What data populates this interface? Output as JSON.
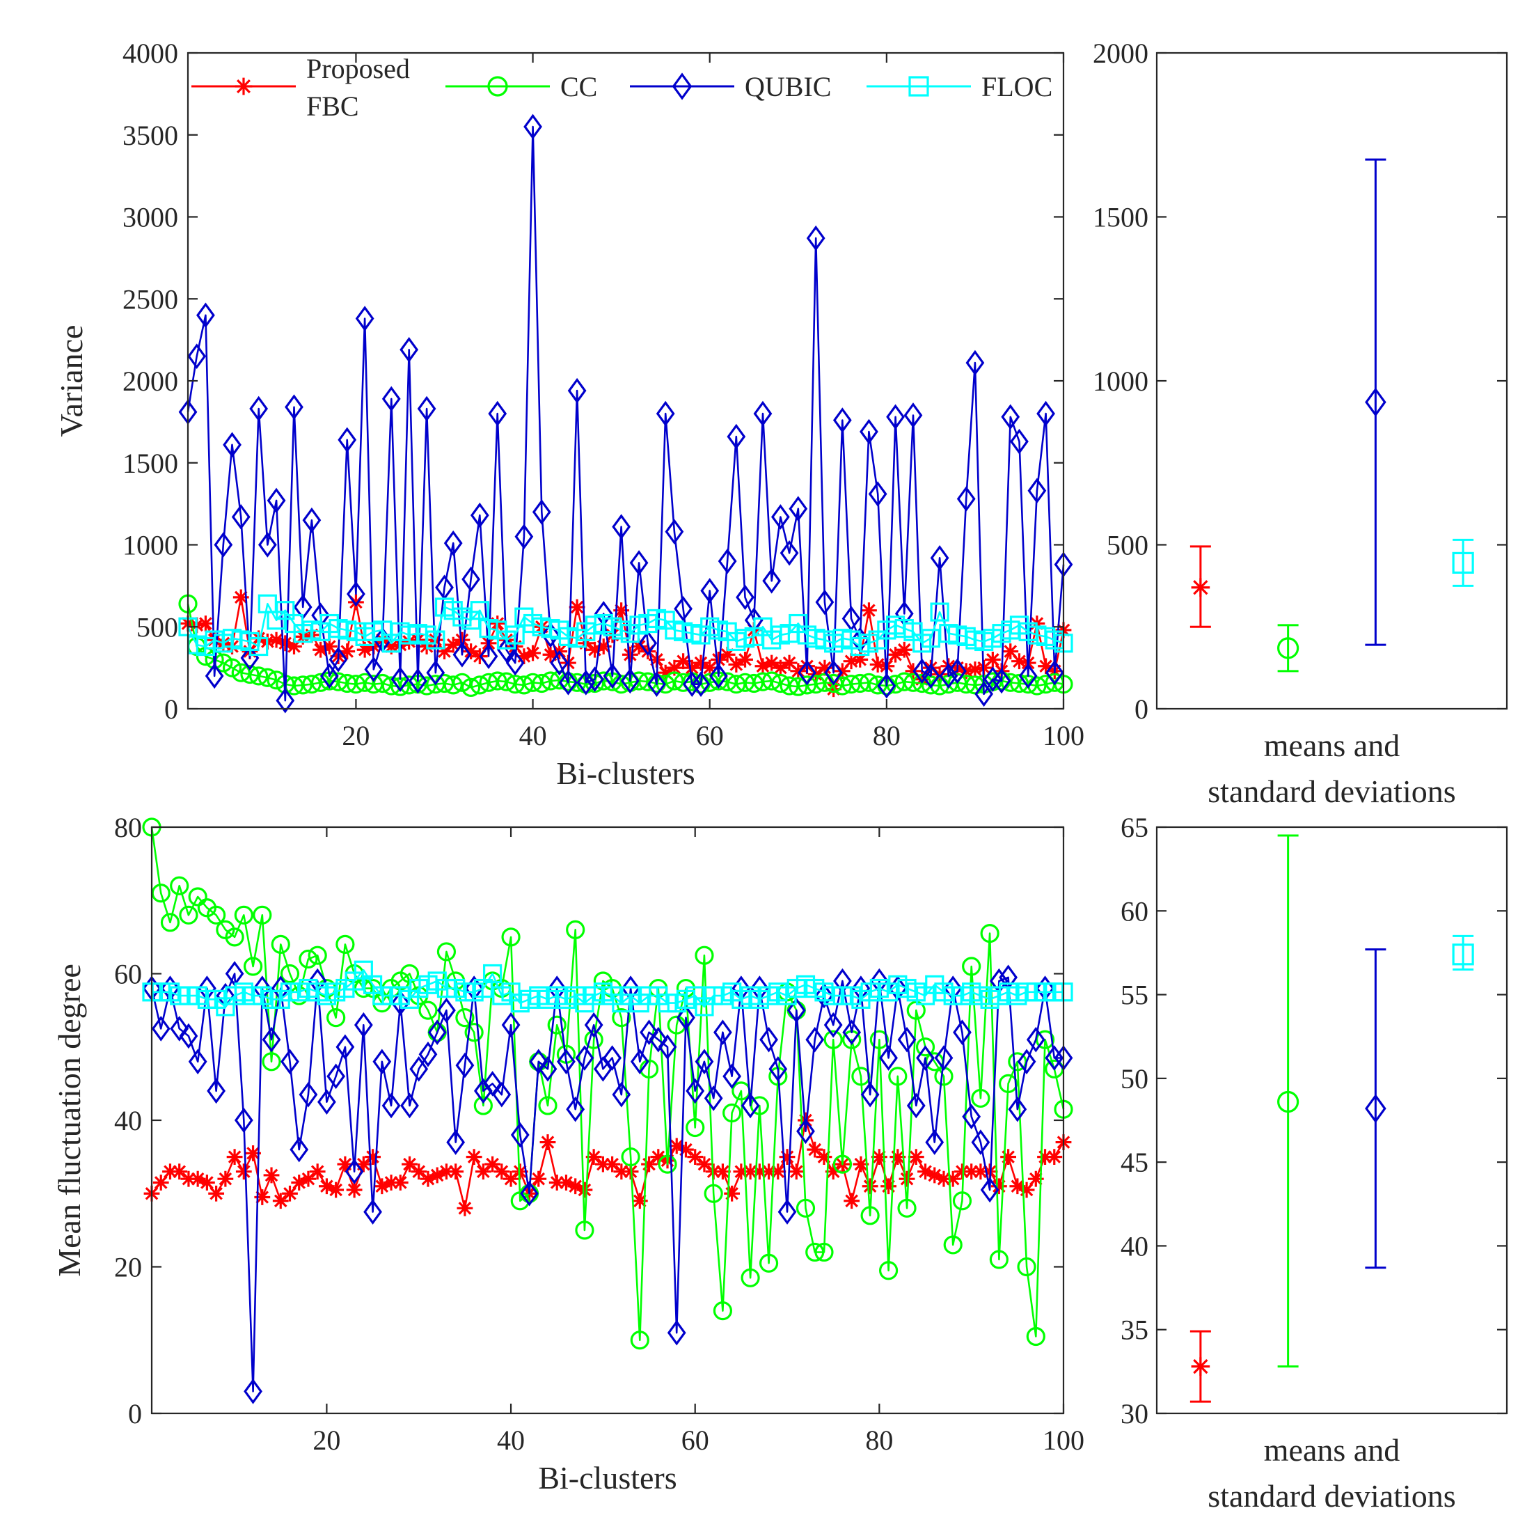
{
  "colors": {
    "Proposed FBC": "#ff0000",
    "CC": "#00ff00",
    "QUBIC": "#0000cc",
    "FLOC": "#00ffff",
    "axis": "#262626"
  },
  "legend": [
    {
      "series": "Proposed FBC",
      "lines": [
        "Proposed",
        "FBC"
      ],
      "marker": "star"
    },
    {
      "series": "CC",
      "lines": [
        "CC"
      ],
      "marker": "circle"
    },
    {
      "series": "QUBIC",
      "lines": [
        "QUBIC"
      ],
      "marker": "diamond"
    },
    {
      "series": "FLOC",
      "lines": [
        "FLOC"
      ],
      "marker": "square"
    }
  ],
  "chart_data": [
    {
      "id": "variance-line",
      "type": "line",
      "title": "",
      "xlabel": "Bi-clusters",
      "ylabel": "Variance",
      "xlim": [
        1,
        100
      ],
      "ylim": [
        0,
        4000
      ],
      "xticks": [
        20,
        40,
        60,
        80,
        100
      ],
      "yticks": [
        0,
        500,
        1000,
        1500,
        2000,
        2500,
        3000,
        3500,
        4000
      ],
      "legend": "top",
      "series": [
        {
          "name": "Proposed FBC",
          "marker": "star",
          "values": [
            520,
            510,
            520,
            420,
            400,
            380,
            680,
            350,
            430,
            410,
            420,
            400,
            380,
            440,
            450,
            360,
            380,
            320,
            350,
            650,
            360,
            380,
            420,
            380,
            390,
            410,
            420,
            380,
            420,
            350,
            390,
            420,
            350,
            320,
            400,
            520,
            420,
            380,
            320,
            340,
            500,
            330,
            350,
            280,
            620,
            400,
            360,
            380,
            450,
            600,
            330,
            380,
            350,
            300,
            220,
            250,
            290,
            250,
            280,
            250,
            300,
            330,
            270,
            300,
            480,
            260,
            280,
            250,
            280,
            230,
            260,
            210,
            250,
            120,
            230,
            290,
            300,
            600,
            270,
            260,
            330,
            360,
            230,
            180,
            250,
            210,
            260,
            250,
            230,
            240,
            250,
            300,
            230,
            350,
            290,
            280,
            520,
            260,
            230,
            480
          ]
        },
        {
          "name": "CC",
          "marker": "circle",
          "values": [
            640,
            380,
            320,
            300,
            280,
            250,
            220,
            210,
            200,
            190,
            175,
            150,
            140,
            145,
            150,
            160,
            170,
            165,
            155,
            150,
            160,
            150,
            155,
            140,
            135,
            145,
            150,
            140,
            150,
            155,
            145,
            160,
            130,
            145,
            160,
            170,
            165,
            150,
            145,
            160,
            155,
            170,
            175,
            165,
            160,
            150,
            155,
            170,
            165,
            150,
            160,
            170,
            165,
            155,
            150,
            170,
            160,
            165,
            150,
            160,
            170,
            165,
            150,
            160,
            155,
            165,
            170,
            155,
            140,
            135,
            145,
            150,
            160,
            155,
            140,
            150,
            155,
            160,
            145,
            140,
            150,
            165,
            160,
            155,
            145,
            140,
            150,
            160,
            150,
            145,
            150,
            165,
            170,
            160,
            155,
            150,
            140,
            150,
            160,
            150
          ]
        },
        {
          "name": "QUBIC",
          "marker": "diamond",
          "values": [
            1810,
            2150,
            2400,
            200,
            1000,
            1610,
            1170,
            310,
            1830,
            1000,
            1270,
            50,
            1840,
            620,
            1150,
            570,
            200,
            300,
            1640,
            700,
            2380,
            240,
            420,
            1890,
            180,
            2190,
            170,
            1830,
            220,
            740,
            1010,
            330,
            790,
            1180,
            320,
            1800,
            360,
            280,
            1050,
            3550,
            1200,
            450,
            280,
            160,
            1940,
            160,
            180,
            580,
            200,
            1110,
            170,
            890,
            400,
            150,
            1800,
            1080,
            610,
            150,
            150,
            720,
            200,
            900,
            1660,
            680,
            540,
            1800,
            780,
            1170,
            950,
            1220,
            220,
            2870,
            650,
            220,
            1760,
            550,
            420,
            1690,
            1310,
            140,
            1780,
            580,
            1790,
            230,
            200,
            920,
            200,
            230,
            1280,
            2110,
            90,
            180,
            170,
            1780,
            1630,
            200,
            1330,
            1800,
            220,
            880
          ]
        },
        {
          "name": "FLOC",
          "marker": "square",
          "values": [
            500,
            390,
            380,
            420,
            400,
            430,
            420,
            410,
            380,
            640,
            540,
            600,
            520,
            460,
            480,
            470,
            520,
            490,
            480,
            470,
            440,
            470,
            480,
            400,
            470,
            450,
            460,
            450,
            420,
            620,
            600,
            560,
            540,
            600,
            490,
            480,
            420,
            450,
            560,
            520,
            500,
            490,
            480,
            440,
            430,
            470,
            510,
            520,
            500,
            480,
            460,
            510,
            520,
            550,
            540,
            480,
            470,
            460,
            450,
            500,
            480,
            470,
            410,
            430,
            440,
            500,
            420,
            450,
            460,
            520,
            450,
            430,
            420,
            400,
            430,
            420,
            380,
            400,
            420,
            480,
            510,
            490,
            470,
            400,
            430,
            590,
            460,
            450,
            440,
            420,
            410,
            430,
            460,
            480,
            510,
            470,
            450,
            440,
            420,
            400
          ]
        }
      ]
    },
    {
      "id": "variance-errorbar",
      "type": "errorbar",
      "xlabel": "means and\nstandard deviations",
      "ylim": [
        0,
        2000
      ],
      "yticks": [
        0,
        500,
        1000,
        1500,
        2000
      ],
      "points": [
        {
          "name": "Proposed FBC",
          "marker": "star",
          "mean": 370,
          "low": 250,
          "high": 495
        },
        {
          "name": "CC",
          "marker": "circle",
          "mean": 185,
          "low": 115,
          "high": 255
        },
        {
          "name": "QUBIC",
          "marker": "diamond",
          "mean": 935,
          "low": 195,
          "high": 1675
        },
        {
          "name": "FLOC",
          "marker": "square",
          "mean": 445,
          "low": 375,
          "high": 515
        }
      ]
    },
    {
      "id": "fluctuation-line",
      "type": "line",
      "title": "",
      "xlabel": "Bi-clusters",
      "ylabel": "Mean fluctuation degree",
      "xlim": [
        1,
        100
      ],
      "ylim": [
        0,
        80
      ],
      "xticks": [
        20,
        40,
        60,
        80,
        100
      ],
      "yticks": [
        0,
        20,
        40,
        60,
        80
      ],
      "series": [
        {
          "name": "Proposed FBC",
          "marker": "star",
          "values": [
            30,
            31.5,
            33,
            33,
            32,
            32,
            31.5,
            30,
            32,
            35,
            33,
            35.5,
            29.5,
            32.5,
            29,
            30,
            31.5,
            32,
            33,
            31,
            30.5,
            34,
            30.5,
            34,
            35,
            31,
            31.5,
            31.5,
            34,
            33,
            32,
            32.5,
            33,
            33,
            28,
            35,
            33,
            34,
            33,
            32,
            33,
            30,
            32,
            37,
            31.5,
            31.5,
            31,
            30.5,
            35,
            34,
            34,
            33,
            33,
            29,
            34,
            35,
            34.5,
            36.5,
            36,
            35,
            34,
            33,
            33,
            30,
            33,
            33,
            33,
            33,
            33,
            35,
            33,
            40,
            36,
            35,
            33,
            34,
            29,
            34,
            31,
            35,
            31,
            35,
            32,
            35,
            33,
            32.5,
            32,
            32,
            33,
            33,
            33,
            33,
            31,
            35,
            31,
            30.5,
            32,
            35,
            35,
            37
          ]
        },
        {
          "name": "CC",
          "marker": "circle",
          "values": [
            80,
            71,
            67,
            72,
            68,
            70.5,
            69,
            68,
            66,
            65,
            68,
            61,
            68,
            48,
            64,
            60,
            57,
            62,
            62.5,
            58,
            54,
            64,
            60,
            58,
            58,
            56,
            58,
            59,
            60,
            57,
            55,
            52,
            63,
            59,
            54,
            52,
            42,
            59,
            58,
            65,
            29,
            30,
            48,
            42,
            53,
            49,
            66,
            25,
            51,
            59,
            58,
            54,
            35,
            10,
            47,
            58,
            34,
            53,
            58,
            39,
            62.5,
            30,
            14,
            41,
            44,
            18.5,
            42,
            20.5,
            46,
            57.5,
            55,
            28,
            22,
            22,
            51,
            34,
            51,
            46,
            27,
            51,
            19.5,
            46,
            28,
            55,
            50,
            48,
            46,
            23,
            29,
            61,
            43,
            65.5,
            21,
            45,
            48,
            20,
            10.5,
            51,
            47,
            41.5
          ]
        },
        {
          "name": "QUBIC",
          "marker": "diamond",
          "values": [
            58,
            52.5,
            58,
            52.5,
            51.5,
            48,
            58,
            44,
            57,
            60,
            40,
            3,
            58,
            51,
            58,
            48,
            36,
            43.5,
            59,
            42.5,
            46,
            50,
            33,
            53,
            27.5,
            48,
            42,
            56,
            42,
            47,
            49,
            52,
            55,
            37,
            47.5,
            58,
            44,
            45,
            43.5,
            53,
            38,
            30,
            48,
            47,
            58,
            48,
            41.5,
            48.5,
            53,
            47,
            48.5,
            43.5,
            58,
            48,
            52,
            51,
            50,
            11,
            54,
            44,
            48,
            43,
            52,
            46,
            58,
            42,
            58,
            51,
            47,
            27.5,
            55,
            38.5,
            51,
            57,
            53,
            59,
            52,
            58,
            43.5,
            59,
            48.5,
            58,
            51,
            42,
            48.5,
            37,
            48.5,
            58,
            52,
            40.5,
            37,
            30.5,
            59,
            59.5,
            41.5,
            48,
            51,
            58,
            48.5,
            48.5
          ]
        },
        {
          "name": "FLOC",
          "marker": "square",
          "values": [
            57.5,
            57.5,
            57.5,
            57,
            57,
            57,
            56.5,
            56.5,
            55.5,
            57,
            57.5,
            57,
            57,
            56.5,
            56.5,
            57.5,
            57.5,
            58,
            57.5,
            57,
            57.5,
            58,
            59,
            60.5,
            58.5,
            57,
            57,
            57,
            56.5,
            58,
            58.5,
            59,
            58,
            58,
            57.5,
            57.5,
            58,
            60,
            57,
            57.5,
            56,
            56.5,
            57,
            56.5,
            57,
            56.5,
            57,
            56,
            57,
            57.5,
            57,
            56,
            57,
            56,
            57,
            57,
            56,
            56,
            56.5,
            57,
            55.5,
            57,
            57,
            57.5,
            56.5,
            57,
            56.5,
            57,
            57.5,
            57,
            58,
            58.5,
            58,
            57.5,
            57,
            57,
            57,
            56.5,
            57.5,
            58,
            57.5,
            58.5,
            58,
            57.5,
            57,
            58.5,
            57.5,
            57,
            57,
            57.5,
            57,
            56.5,
            57,
            57.5,
            57,
            57.5,
            57.5,
            57.5,
            57.5,
            57.5
          ]
        }
      ]
    },
    {
      "id": "fluctuation-errorbar",
      "type": "errorbar",
      "xlabel": "means and\nstandard deviations",
      "ylim": [
        30,
        65
      ],
      "yticks": [
        30,
        35,
        40,
        45,
        50,
        55,
        60,
        65
      ],
      "points": [
        {
          "name": "Proposed FBC",
          "marker": "star",
          "mean": 32.8,
          "low": 30.7,
          "high": 34.9
        },
        {
          "name": "CC",
          "marker": "circle",
          "mean": 48.6,
          "low": 32.8,
          "high": 64.5
        },
        {
          "name": "QUBIC",
          "marker": "diamond",
          "mean": 48.2,
          "low": 38.7,
          "high": 57.7
        },
        {
          "name": "FLOC",
          "marker": "square",
          "mean": 57.4,
          "low": 56.5,
          "high": 58.5
        }
      ]
    }
  ]
}
